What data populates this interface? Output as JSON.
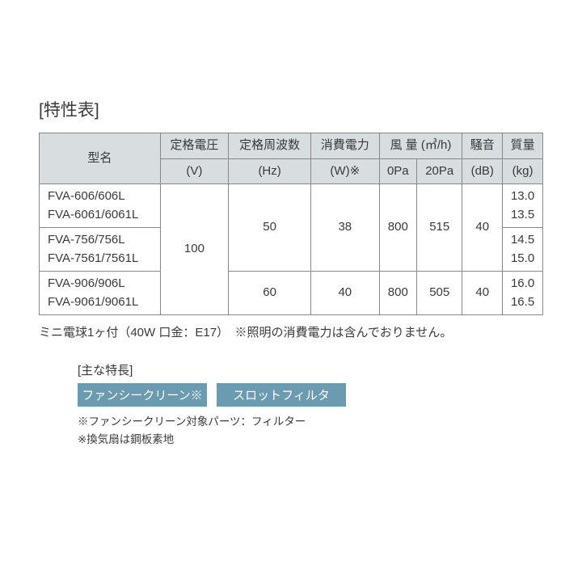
{
  "title": "[特性表]",
  "table": {
    "headers": {
      "model": "型名",
      "voltage": "定格電圧",
      "voltage_unit": "(V)",
      "freq": "定格周波数",
      "freq_unit": "(Hz)",
      "power": "消費電力",
      "power_unit": "(W)※",
      "airflow": "風 量",
      "airflow_unit": "(㎥/h)",
      "airflow_0pa": "0Pa",
      "airflow_20pa": "20Pa",
      "noise": "騒音",
      "noise_unit": "(dB)",
      "mass": "質量",
      "mass_unit": "(kg)"
    },
    "voltage_value": "100",
    "rows": [
      {
        "model": "FVA-606/606L\nFVA-6061/6061L",
        "freq": "50",
        "power": "38",
        "air0": "800",
        "air20": "515",
        "noise": "40",
        "mass": "13.0\n13.5"
      },
      {
        "model": "FVA-756/756L\nFVA-7561/7561L",
        "freq": "",
        "power": "",
        "air0": "",
        "air20": "",
        "noise": "",
        "mass": "14.5\n15.0"
      },
      {
        "model": "FVA-906/906L\nFVA-9061/9061L",
        "freq": "60",
        "power": "40",
        "air0": "800",
        "air20": "505",
        "noise": "40",
        "mass": "16.0\n16.5"
      }
    ]
  },
  "footnote1": "ミニ電球1ヶ付（40W 口金：E17）　※照明の消費電力は含んでおりません。",
  "features": {
    "title": "[主な特長]",
    "badges": [
      "ファンシークリーン※",
      "スロットフィルタ"
    ],
    "notes": "※ファンシークリーン対象パーツ：フィルター\n※換気扇は鋼板素地"
  },
  "colors": {
    "header_bg": "#d8dde0",
    "border": "#888888",
    "badge_bg": "#6a9bb0",
    "badge_text": "#ffffff",
    "text": "#3a3a3a",
    "background": "#ffffff"
  },
  "typography": {
    "title_fontsize": 21,
    "table_fontsize": 15,
    "footnote_fontsize": 15,
    "small_footnote_fontsize": 13.5
  }
}
